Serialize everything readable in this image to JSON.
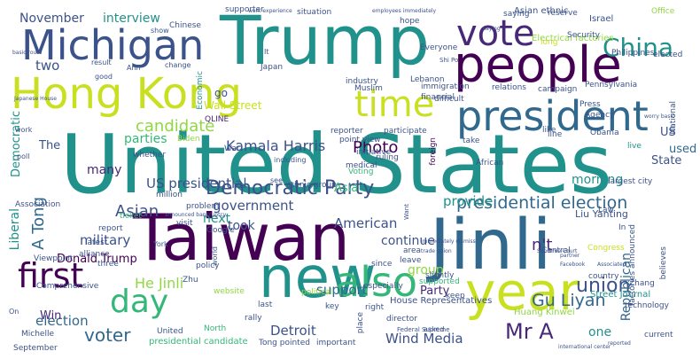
{
  "palette": {
    "purple": "#440154",
    "indigo": "#3b528b",
    "blue": "#31688e",
    "teal": "#21918c",
    "green": "#35b779",
    "lime": "#90d743",
    "yellow": "#c8e020",
    "navy": "#482878"
  },
  "words": [
    {
      "text": "United States",
      "color": "teal"
    },
    {
      "text": "Taiwan",
      "color": "purple"
    },
    {
      "text": "Trump",
      "color": "teal"
    },
    {
      "text": "Jinli",
      "color": "blue"
    },
    {
      "text": "Hong Kong",
      "color": "yellow"
    },
    {
      "text": "people",
      "color": "purple"
    },
    {
      "text": "new",
      "color": "teal"
    },
    {
      "text": "year",
      "color": "yellow"
    },
    {
      "text": "president",
      "color": "blue"
    },
    {
      "text": "Michigan",
      "color": "indigo"
    },
    {
      "text": "also",
      "color": "green"
    },
    {
      "text": "vote",
      "color": "navy"
    },
    {
      "text": "time",
      "color": "yellow"
    },
    {
      "text": "first",
      "color": "purple"
    },
    {
      "text": "day",
      "color": "green"
    },
    {
      "text": "China",
      "color": "teal"
    },
    {
      "text": "Democratic Party",
      "color": "indigo"
    },
    {
      "text": "presidential election",
      "color": "blue"
    },
    {
      "text": "union",
      "color": "indigo"
    },
    {
      "text": "Asian",
      "color": "indigo"
    },
    {
      "text": "Gu Liyan",
      "color": "blue"
    },
    {
      "text": "Mr A",
      "color": "navy"
    },
    {
      "text": "voter",
      "color": "blue"
    },
    {
      "text": "n't",
      "color": "navy"
    },
    {
      "text": "A Tong",
      "color": "blue"
    },
    {
      "text": "Kamala Harris",
      "color": "indigo"
    },
    {
      "text": "Photo",
      "color": "purple"
    },
    {
      "text": "candidate",
      "color": "lime"
    },
    {
      "text": "US presidential",
      "color": "indigo"
    },
    {
      "text": "government",
      "color": "indigo"
    },
    {
      "text": "American",
      "color": "indigo"
    },
    {
      "text": "military",
      "color": "indigo"
    },
    {
      "text": "support",
      "color": "blue"
    },
    {
      "text": "Wind Media",
      "color": "indigo"
    },
    {
      "text": "Detroit",
      "color": "indigo"
    },
    {
      "text": "Republican",
      "color": "blue"
    },
    {
      "text": "He Jinli",
      "color": "lime"
    },
    {
      "text": "Donald Trump",
      "color": "purple"
    },
    {
      "text": "election",
      "color": "blue"
    },
    {
      "text": "interview",
      "color": "teal"
    },
    {
      "text": "November",
      "color": "indigo"
    },
    {
      "text": "Democratic",
      "color": "teal"
    },
    {
      "text": "Liberal",
      "color": "teal"
    },
    {
      "text": "two",
      "color": "indigo"
    },
    {
      "text": "many",
      "color": "navy"
    },
    {
      "text": "parties",
      "color": "green"
    },
    {
      "text": "provide",
      "color": "teal"
    },
    {
      "text": "morning",
      "color": "teal"
    },
    {
      "text": "continue",
      "color": "indigo"
    },
    {
      "text": "took",
      "color": "indigo"
    },
    {
      "text": "next",
      "color": "teal"
    },
    {
      "text": "Asia",
      "color": "green"
    },
    {
      "text": "used",
      "color": "blue"
    },
    {
      "text": "State",
      "color": "indigo"
    },
    {
      "text": "US",
      "color": "indigo"
    },
    {
      "text": "The",
      "color": "indigo"
    },
    {
      "text": "one",
      "color": "teal"
    },
    {
      "text": "group",
      "color": "lime"
    },
    {
      "text": "Party",
      "color": "navy"
    },
    {
      "text": "Win",
      "color": "navy"
    },
    {
      "text": "go",
      "color": "indigo"
    },
    {
      "text": "Wall Street",
      "color": "yellow"
    },
    {
      "text": "Liu Yanting",
      "color": "indigo"
    },
    {
      "text": "Huang Kinwei",
      "color": "lime"
    },
    {
      "text": "Street Journal",
      "color": "teal"
    },
    {
      "text": "House Representatives",
      "color": "indigo"
    },
    {
      "text": "Asian ethnic",
      "color": "indigo"
    },
    {
      "text": "Electrical factories",
      "color": "lime"
    },
    {
      "text": "Israel",
      "color": "indigo"
    },
    {
      "text": "Security",
      "color": "indigo"
    },
    {
      "text": "Philippines",
      "color": "indigo"
    },
    {
      "text": "Pennsylvania",
      "color": "indigo"
    },
    {
      "text": "campaign",
      "color": "indigo"
    },
    {
      "text": "Press",
      "color": "indigo"
    },
    {
      "text": "Agency",
      "color": "indigo"
    },
    {
      "text": "immigration",
      "color": "indigo"
    },
    {
      "text": "relations",
      "color": "indigo"
    },
    {
      "text": "financial",
      "color": "indigo"
    },
    {
      "text": "Muslim",
      "color": "indigo"
    },
    {
      "text": "Lebanon",
      "color": "indigo"
    },
    {
      "text": "industry",
      "color": "indigo"
    },
    {
      "text": "Japan",
      "color": "indigo"
    },
    {
      "text": "Economic",
      "color": "teal"
    },
    {
      "text": "QLINE",
      "color": "navy"
    },
    {
      "text": "Chinese",
      "color": "indigo"
    },
    {
      "text": "supporter",
      "color": "indigo"
    },
    {
      "text": "situation",
      "color": "indigo"
    },
    {
      "text": "saying",
      "color": "indigo"
    },
    {
      "text": "reserve",
      "color": "indigo"
    },
    {
      "text": "Office",
      "color": "lime"
    },
    {
      "text": "elected",
      "color": "indigo"
    },
    {
      "text": "National",
      "color": "indigo"
    },
    {
      "text": "Everyone",
      "color": "indigo"
    },
    {
      "text": "hope",
      "color": "indigo"
    },
    {
      "text": "long",
      "color": "yellow"
    },
    {
      "text": "line",
      "color": "indigo"
    },
    {
      "text": "difficult",
      "color": "indigo"
    },
    {
      "text": "foreign",
      "color": "purple"
    },
    {
      "text": "take",
      "color": "indigo"
    },
    {
      "text": "like",
      "color": "indigo"
    },
    {
      "text": "Law",
      "color": "indigo"
    },
    {
      "text": "In",
      "color": "indigo"
    },
    {
      "text": "Obama",
      "color": "indigo"
    },
    {
      "text": "live",
      "color": "teal"
    },
    {
      "text": "largest city",
      "color": "indigo"
    },
    {
      "text": "African",
      "color": "indigo"
    },
    {
      "text": "ruling",
      "color": "indigo"
    },
    {
      "text": "point view",
      "color": "indigo"
    },
    {
      "text": "initiative",
      "color": "indigo"
    },
    {
      "text": "medical",
      "color": "indigo"
    },
    {
      "text": "reporter",
      "color": "indigo"
    },
    {
      "text": "participate",
      "color": "indigo"
    },
    {
      "text": "Voting",
      "color": "green"
    },
    {
      "text": "ethnic group",
      "color": "indigo"
    },
    {
      "text": "War",
      "color": "indigo"
    },
    {
      "text": "Biden",
      "color": "lime"
    },
    {
      "text": "whether",
      "color": "indigo"
    },
    {
      "text": "Association",
      "color": "indigo"
    },
    {
      "text": "million",
      "color": "indigo"
    },
    {
      "text": "problem",
      "color": "indigo"
    },
    {
      "text": "Google",
      "color": "indigo"
    },
    {
      "text": "visit",
      "color": "indigo"
    },
    {
      "text": "ticket",
      "color": "green"
    },
    {
      "text": "report",
      "color": "indigo"
    },
    {
      "text": "latest",
      "color": "indigo"
    },
    {
      "text": "Viewpoint",
      "color": "indigo"
    },
    {
      "text": "alliance",
      "color": "indigo"
    },
    {
      "text": "three",
      "color": "indigo"
    },
    {
      "text": "Comprehensive",
      "color": "indigo"
    },
    {
      "text": "policy",
      "color": "indigo"
    },
    {
      "text": "Zhu",
      "color": "indigo"
    },
    {
      "text": "website",
      "color": "lime"
    },
    {
      "text": "last",
      "color": "indigo"
    },
    {
      "text": "political",
      "color": "lime"
    },
    {
      "text": "rally",
      "color": "indigo"
    },
    {
      "text": "key",
      "color": "indigo"
    },
    {
      "text": "United",
      "color": "indigo"
    },
    {
      "text": "North",
      "color": "green"
    },
    {
      "text": "presidential candidate",
      "color": "green"
    },
    {
      "text": "Tong pointed",
      "color": "indigo"
    },
    {
      "text": "important",
      "color": "indigo"
    },
    {
      "text": "Michelle",
      "color": "indigo"
    },
    {
      "text": "September",
      "color": "indigo"
    },
    {
      "text": "place",
      "color": "indigo"
    },
    {
      "text": "right",
      "color": "indigo"
    },
    {
      "text": "especially",
      "color": "indigo"
    },
    {
      "text": "director",
      "color": "indigo"
    },
    {
      "text": "since",
      "color": "indigo"
    },
    {
      "text": "area",
      "color": "indigo"
    },
    {
      "text": "leave",
      "color": "indigo"
    },
    {
      "text": "keep",
      "color": "indigo"
    },
    {
      "text": "slightly",
      "color": "indigo"
    },
    {
      "text": "supported",
      "color": "green"
    },
    {
      "text": "Central",
      "color": "indigo"
    },
    {
      "text": "Congress",
      "color": "yellow"
    },
    {
      "text": "country",
      "color": "indigo"
    },
    {
      "text": "Zhang",
      "color": "indigo"
    },
    {
      "text": "technology",
      "color": "indigo"
    },
    {
      "text": "believes",
      "color": "indigo"
    },
    {
      "text": "current",
      "color": "indigo"
    },
    {
      "text": "factories announced",
      "color": "indigo"
    },
    {
      "text": "result",
      "color": "indigo"
    },
    {
      "text": "Ann",
      "color": "indigo"
    },
    {
      "text": "change",
      "color": "indigo"
    },
    {
      "text": "good",
      "color": "indigo"
    },
    {
      "text": "show",
      "color": "indigo"
    },
    {
      "text": "It",
      "color": "indigo"
    },
    {
      "text": "work",
      "color": "indigo"
    },
    {
      "text": "poll",
      "color": "indigo"
    },
    {
      "text": "including",
      "color": "indigo"
    },
    {
      "text": "see",
      "color": "indigo"
    },
    {
      "text": "asked",
      "color": "indigo"
    },
    {
      "text": "Federal Supreme",
      "color": "indigo"
    },
    {
      "text": "On",
      "color": "indigo"
    },
    {
      "text": "York",
      "color": "indigo"
    },
    {
      "text": "world",
      "color": "indigo"
    },
    {
      "text": "Shi Po",
      "color": "indigo"
    },
    {
      "text": "work experience",
      "color": "indigo"
    },
    {
      "text": "employees immediately",
      "color": "indigo"
    },
    {
      "text": "announced bankruptcy",
      "color": "indigo"
    },
    {
      "text": "Japanese House",
      "color": "indigo"
    },
    {
      "text": "basic route",
      "color": "indigo"
    },
    {
      "text": "worry basic",
      "color": "indigo"
    },
    {
      "text": "trade union",
      "color": "indigo"
    },
    {
      "text": "immediately dismiss",
      "color": "indigo"
    },
    {
      "text": "international center",
      "color": "indigo"
    },
    {
      "text": "Associated",
      "color": "indigo"
    },
    {
      "text": "partner",
      "color": "indigo"
    },
    {
      "text": "Facebook",
      "color": "indigo"
    },
    {
      "text": "reported",
      "color": "indigo"
    },
    {
      "text": "saying",
      "color": "indigo"
    },
    {
      "text": "Supreme Court",
      "color": "indigo"
    },
    {
      "text": "Want",
      "color": "indigo"
    }
  ]
}
